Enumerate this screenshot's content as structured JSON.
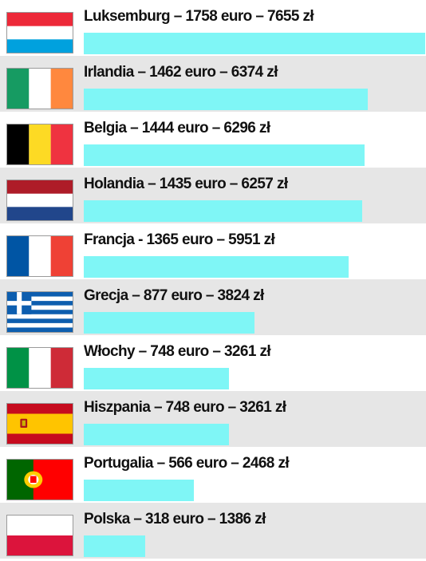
{
  "chart_data": {
    "type": "bar",
    "orientation": "horizontal",
    "title": "",
    "xlabel": "",
    "ylabel": "",
    "bar_color": "#7ff6f6",
    "units": [
      "euro",
      "zł"
    ],
    "categories": [
      "Luksemburg",
      "Irlandia",
      "Belgia",
      "Holandia",
      "Francja",
      "Grecja",
      "Włochy",
      "Hiszpania",
      "Portugalia",
      "Polska"
    ],
    "values_eur": [
      1758,
      1462,
      1444,
      1435,
      1365,
      877,
      748,
      748,
      566,
      318
    ],
    "values_pln": [
      7655,
      6374,
      6296,
      6257,
      5951,
      3824,
      3261,
      3261,
      2468,
      1386
    ],
    "labels": [
      "Luksemburg – 1758 euro – 7655 zł",
      "Irlandia – 1462 euro – 6374 zł",
      "Belgia – 1444 euro – 6296 zł",
      "Holandia – 1435 euro – 6257 zł",
      "Francja - 1365 euro – 5951 zł",
      "Grecja – 877 euro – 3824 zł",
      "Włochy – 748 euro – 3261 zł",
      "Hiszpania – 748 euro – 3261 zł",
      "Portugalia – 566 euro – 2468 zł",
      "Polska – 318 euro – 1386 zł"
    ],
    "flags": [
      "luxembourg-flag-icon",
      "ireland-flag-icon",
      "belgium-flag-icon",
      "netherlands-flag-icon",
      "france-flag-icon",
      "greece-flag-icon",
      "italy-flag-icon",
      "spain-flag-icon",
      "portugal-flag-icon",
      "poland-flag-icon"
    ],
    "xlim": [
      0,
      1758
    ],
    "grid": false,
    "legend": "none"
  }
}
